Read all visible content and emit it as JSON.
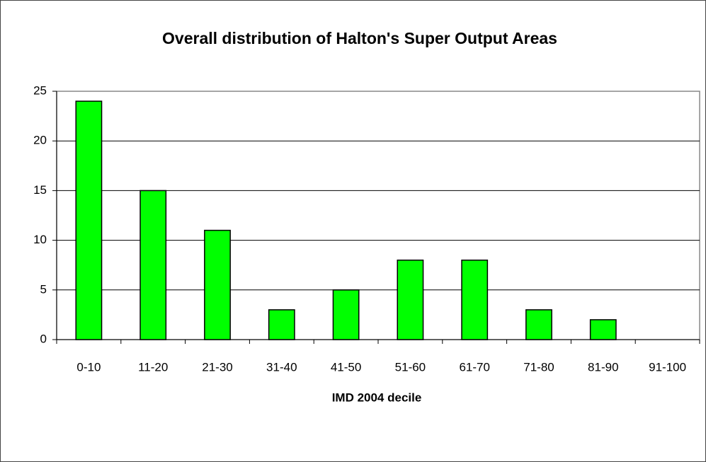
{
  "chart_data": {
    "type": "bar",
    "title": "Overall distribution of Halton's Super Output Areas",
    "x_label": "IMD 2004 decile",
    "categories": [
      "0-10",
      "11-20",
      "21-30",
      "31-40",
      "41-50",
      "51-60",
      "61-70",
      "71-80",
      "81-90",
      "91-100"
    ],
    "values": [
      24,
      15,
      11,
      3,
      5,
      8,
      8,
      3,
      2,
      0
    ],
    "color": "#00ff00",
    "ylim": [
      0,
      25
    ],
    "yticks": [
      0,
      5,
      10,
      15,
      20,
      25
    ],
    "grid": true
  }
}
